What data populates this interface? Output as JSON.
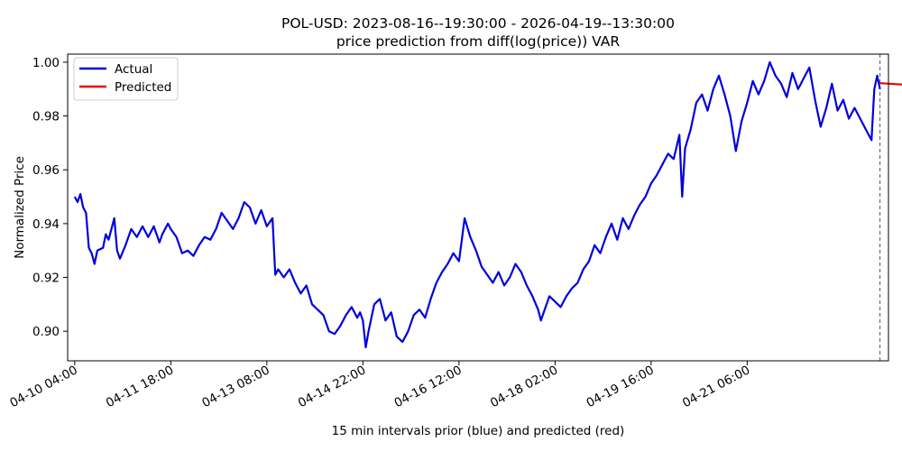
{
  "chart_data": {
    "type": "line",
    "title": "POL-USD: 2023-08-16--19:30:00 - 2026-04-19--13:30:00",
    "subtitle": "price prediction from diff(log(price)) VAR",
    "xlabel": "15 min intervals prior (blue) and predicted (red)",
    "ylabel": "Normalized Price",
    "x_tick_labels": [
      "04-10 04:00",
      "04-11 18:00",
      "04-13 08:00",
      "04-14 22:00",
      "04-16 12:00",
      "04-18 02:00",
      "04-19 16:00",
      "04-21 06:00"
    ],
    "y_tick_labels": [
      "0.90",
      "0.92",
      "0.94",
      "0.96",
      "0.98",
      "1.00"
    ],
    "y_ticks": [
      0.9,
      0.92,
      0.94,
      0.96,
      0.98,
      1.0
    ],
    "ylim": [
      0.889,
      1.003
    ],
    "x_range_hours": [
      -2.5,
      288
    ],
    "legend_placement": "upper-left",
    "grid": false,
    "forecast_start_marker": "dashed vertical line at 2026-04-19 13:30",
    "series": [
      {
        "name": "Actual",
        "color": "#0000dd",
        "points_hours_vs_value": [
          [
            0,
            0.95
          ],
          [
            1,
            0.948
          ],
          [
            2,
            0.951
          ],
          [
            3,
            0.946
          ],
          [
            4,
            0.944
          ],
          [
            5,
            0.931
          ],
          [
            6,
            0.929
          ],
          [
            7,
            0.925
          ],
          [
            8,
            0.93
          ],
          [
            10,
            0.931
          ],
          [
            11,
            0.936
          ],
          [
            12,
            0.934
          ],
          [
            14,
            0.942
          ],
          [
            15,
            0.93
          ],
          [
            16,
            0.927
          ],
          [
            18,
            0.932
          ],
          [
            20,
            0.938
          ],
          [
            22,
            0.935
          ],
          [
            24,
            0.939
          ],
          [
            26,
            0.935
          ],
          [
            28,
            0.939
          ],
          [
            30,
            0.933
          ],
          [
            31,
            0.936
          ],
          [
            33,
            0.94
          ],
          [
            34,
            0.938
          ],
          [
            36,
            0.935
          ],
          [
            38,
            0.929
          ],
          [
            40,
            0.93
          ],
          [
            42,
            0.928
          ],
          [
            44,
            0.932
          ],
          [
            46,
            0.935
          ],
          [
            48,
            0.934
          ],
          [
            50,
            0.938
          ],
          [
            52,
            0.944
          ],
          [
            54,
            0.941
          ],
          [
            56,
            0.938
          ],
          [
            58,
            0.942
          ],
          [
            60,
            0.948
          ],
          [
            62,
            0.946
          ],
          [
            64,
            0.94
          ],
          [
            66,
            0.945
          ],
          [
            68,
            0.939
          ],
          [
            70,
            0.942
          ],
          [
            71,
            0.921
          ],
          [
            72,
            0.923
          ],
          [
            74,
            0.92
          ],
          [
            76,
            0.923
          ],
          [
            78,
            0.918
          ],
          [
            80,
            0.914
          ],
          [
            82,
            0.917
          ],
          [
            84,
            0.91
          ],
          [
            86,
            0.908
          ],
          [
            88,
            0.906
          ],
          [
            90,
            0.9
          ],
          [
            92,
            0.899
          ],
          [
            94,
            0.902
          ],
          [
            96,
            0.906
          ],
          [
            98,
            0.909
          ],
          [
            100,
            0.905
          ],
          [
            101,
            0.907
          ],
          [
            102,
            0.904
          ],
          [
            103,
            0.894
          ],
          [
            104,
            0.9
          ],
          [
            106,
            0.91
          ],
          [
            108,
            0.912
          ],
          [
            110,
            0.904
          ],
          [
            112,
            0.907
          ],
          [
            114,
            0.898
          ],
          [
            116,
            0.896
          ],
          [
            118,
            0.9
          ],
          [
            120,
            0.906
          ],
          [
            122,
            0.908
          ],
          [
            124,
            0.905
          ],
          [
            126,
            0.912
          ],
          [
            128,
            0.918
          ],
          [
            130,
            0.922
          ],
          [
            132,
            0.925
          ],
          [
            134,
            0.929
          ],
          [
            136,
            0.926
          ],
          [
            138,
            0.942
          ],
          [
            140,
            0.935
          ],
          [
            142,
            0.93
          ],
          [
            144,
            0.924
          ],
          [
            146,
            0.921
          ],
          [
            148,
            0.918
          ],
          [
            150,
            0.922
          ],
          [
            152,
            0.917
          ],
          [
            154,
            0.92
          ],
          [
            156,
            0.925
          ],
          [
            158,
            0.922
          ],
          [
            160,
            0.917
          ],
          [
            162,
            0.913
          ],
          [
            164,
            0.908
          ],
          [
            165,
            0.904
          ],
          [
            166,
            0.907
          ],
          [
            168,
            0.913
          ],
          [
            170,
            0.911
          ],
          [
            172,
            0.909
          ],
          [
            174,
            0.913
          ],
          [
            176,
            0.916
          ],
          [
            178,
            0.918
          ],
          [
            180,
            0.923
          ],
          [
            182,
            0.926
          ],
          [
            184,
            0.932
          ],
          [
            186,
            0.929
          ],
          [
            188,
            0.935
          ],
          [
            190,
            0.94
          ],
          [
            192,
            0.934
          ],
          [
            194,
            0.942
          ],
          [
            196,
            0.938
          ],
          [
            198,
            0.943
          ],
          [
            200,
            0.947
          ],
          [
            202,
            0.95
          ],
          [
            204,
            0.955
          ],
          [
            206,
            0.958
          ],
          [
            208,
            0.962
          ],
          [
            210,
            0.966
          ],
          [
            212,
            0.964
          ],
          [
            214,
            0.973
          ],
          [
            215,
            0.95
          ],
          [
            216,
            0.968
          ],
          [
            218,
            0.975
          ],
          [
            220,
            0.985
          ],
          [
            222,
            0.988
          ],
          [
            224,
            0.982
          ],
          [
            226,
            0.99
          ],
          [
            228,
            0.995
          ],
          [
            230,
            0.988
          ],
          [
            232,
            0.98
          ],
          [
            234,
            0.967
          ],
          [
            236,
            0.978
          ],
          [
            238,
            0.985
          ],
          [
            240,
            0.993
          ],
          [
            242,
            0.988
          ],
          [
            244,
            0.993
          ],
          [
            246,
            1.0
          ],
          [
            248,
            0.995
          ],
          [
            250,
            0.992
          ],
          [
            252,
            0.987
          ],
          [
            254,
            0.996
          ],
          [
            256,
            0.99
          ],
          [
            258,
            0.994
          ],
          [
            260,
            0.998
          ],
          [
            262,
            0.986
          ],
          [
            264,
            0.976
          ],
          [
            266,
            0.983
          ],
          [
            268,
            0.992
          ],
          [
            270,
            0.982
          ],
          [
            272,
            0.986
          ],
          [
            274,
            0.979
          ],
          [
            276,
            0.983
          ],
          [
            278,
            0.979
          ],
          [
            280,
            0.975
          ],
          [
            282,
            0.971
          ],
          [
            283,
            0.99
          ],
          [
            284,
            0.995
          ],
          [
            285,
            0.99
          ]
        ]
      },
      {
        "name": "Predicted",
        "color": "#ee0000",
        "points_hours_vs_value": [
          [
            285,
            0.9922
          ],
          [
            338,
            0.9888
          ]
        ]
      }
    ],
    "x_axis_origin": "04-10 04:00"
  }
}
